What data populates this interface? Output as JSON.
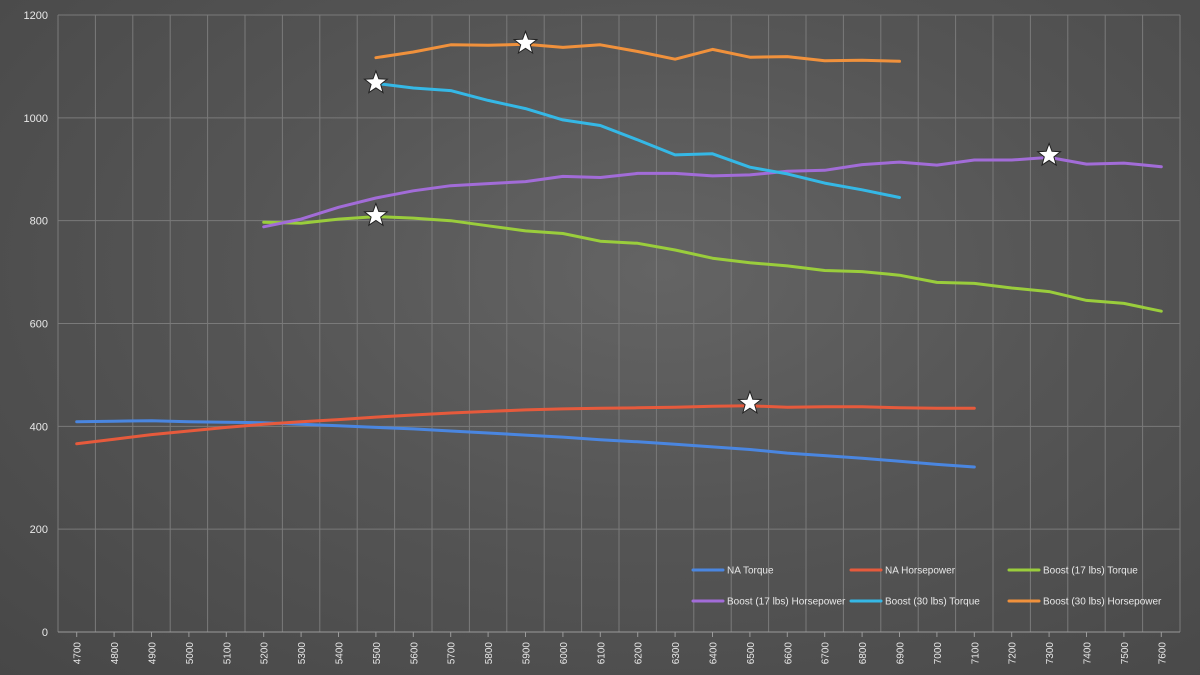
{
  "chart_data": {
    "type": "line",
    "title": "",
    "xlabel": "",
    "ylabel": "",
    "ylim": [
      0,
      1200
    ],
    "yticks": [
      0,
      200,
      400,
      600,
      800,
      1000,
      1200
    ],
    "x": [
      4700,
      4800,
      4900,
      5000,
      5100,
      5200,
      5300,
      5400,
      5500,
      5600,
      5700,
      5800,
      5900,
      6000,
      6100,
      6200,
      6300,
      6400,
      6500,
      6600,
      6700,
      6800,
      6900,
      7000,
      7100,
      7200,
      7300,
      7400,
      7500,
      7600
    ],
    "grid": true,
    "legend": "bottom-right",
    "series": [
      {
        "name": "NA Torque",
        "color": "#4a86e0",
        "points": [
          [
            4700,
            409
          ],
          [
            4800,
            410
          ],
          [
            4900,
            411
          ],
          [
            5000,
            409
          ],
          [
            5100,
            408
          ],
          [
            5200,
            407
          ],
          [
            5300,
            404
          ],
          [
            5400,
            401
          ],
          [
            5500,
            398
          ],
          [
            5600,
            395
          ],
          [
            5700,
            391
          ],
          [
            5800,
            387
          ],
          [
            5900,
            383
          ],
          [
            6000,
            379
          ],
          [
            6100,
            374
          ],
          [
            6200,
            370
          ],
          [
            6300,
            365
          ],
          [
            6400,
            360
          ],
          [
            6500,
            355
          ],
          [
            6600,
            348
          ],
          [
            6700,
            343
          ],
          [
            6800,
            338
          ],
          [
            6900,
            332
          ],
          [
            7000,
            326
          ],
          [
            7100,
            321
          ]
        ]
      },
      {
        "name": "NA Horsepower",
        "color": "#e65a3c",
        "points": [
          [
            4700,
            366
          ],
          [
            4800,
            375
          ],
          [
            4900,
            384
          ],
          [
            5000,
            391
          ],
          [
            5100,
            398
          ],
          [
            5200,
            404
          ],
          [
            5300,
            409
          ],
          [
            5400,
            413
          ],
          [
            5500,
            418
          ],
          [
            5600,
            422
          ],
          [
            5700,
            426
          ],
          [
            5800,
            429
          ],
          [
            5900,
            432
          ],
          [
            6000,
            434
          ],
          [
            6100,
            435
          ],
          [
            6200,
            436
          ],
          [
            6300,
            437
          ],
          [
            6400,
            439
          ],
          [
            6500,
            440
          ],
          [
            6600,
            437
          ],
          [
            6700,
            438
          ],
          [
            6800,
            438
          ],
          [
            6900,
            436
          ],
          [
            7000,
            435
          ],
          [
            7100,
            435
          ]
        ]
      },
      {
        "name": "Boost (17 lbs) Torque",
        "color": "#9acd3c",
        "points": [
          [
            5200,
            797
          ],
          [
            5300,
            795
          ],
          [
            5400,
            803
          ],
          [
            5500,
            808
          ],
          [
            5600,
            805
          ],
          [
            5700,
            800
          ],
          [
            5800,
            790
          ],
          [
            5900,
            780
          ],
          [
            6000,
            775
          ],
          [
            6100,
            760
          ],
          [
            6200,
            756
          ],
          [
            6300,
            743
          ],
          [
            6400,
            727
          ],
          [
            6500,
            718
          ],
          [
            6600,
            712
          ],
          [
            6700,
            703
          ],
          [
            6800,
            701
          ],
          [
            6900,
            694
          ],
          [
            7000,
            680
          ],
          [
            7100,
            678
          ],
          [
            7200,
            669
          ],
          [
            7300,
            662
          ],
          [
            7400,
            645
          ],
          [
            7500,
            639
          ],
          [
            7600,
            624
          ]
        ]
      },
      {
        "name": "Boost (17 lbs) Horsepower",
        "color": "#a26cd8",
        "points": [
          [
            5200,
            788
          ],
          [
            5300,
            803
          ],
          [
            5400,
            826
          ],
          [
            5500,
            844
          ],
          [
            5600,
            858
          ],
          [
            5700,
            868
          ],
          [
            5800,
            872
          ],
          [
            5900,
            876
          ],
          [
            6000,
            886
          ],
          [
            6100,
            884
          ],
          [
            6200,
            892
          ],
          [
            6300,
            892
          ],
          [
            6400,
            887
          ],
          [
            6500,
            889
          ],
          [
            6600,
            896
          ],
          [
            6700,
            898
          ],
          [
            6800,
            909
          ],
          [
            6900,
            914
          ],
          [
            7000,
            908
          ],
          [
            7100,
            918
          ],
          [
            7200,
            918
          ],
          [
            7300,
            923
          ],
          [
            7400,
            910
          ],
          [
            7500,
            912
          ],
          [
            7600,
            905
          ]
        ]
      },
      {
        "name": "Boost (30 lbs) Torque",
        "color": "#35b8e6",
        "points": [
          [
            5500,
            1067
          ],
          [
            5600,
            1058
          ],
          [
            5700,
            1053
          ],
          [
            5800,
            1034
          ],
          [
            5900,
            1018
          ],
          [
            6000,
            996
          ],
          [
            6100,
            985
          ],
          [
            6200,
            957
          ],
          [
            6300,
            928
          ],
          [
            6400,
            930
          ],
          [
            6500,
            904
          ],
          [
            6600,
            891
          ],
          [
            6700,
            873
          ],
          [
            6800,
            860
          ],
          [
            6900,
            845
          ]
        ]
      },
      {
        "name": "Boost (30 lbs) Horsepower",
        "color": "#f0913c",
        "points": [
          [
            5500,
            1117
          ],
          [
            5600,
            1128
          ],
          [
            5700,
            1142
          ],
          [
            5800,
            1141
          ],
          [
            5900,
            1143
          ],
          [
            6000,
            1137
          ],
          [
            6100,
            1142
          ],
          [
            6200,
            1129
          ],
          [
            6300,
            1114
          ],
          [
            6400,
            1133
          ],
          [
            6500,
            1118
          ],
          [
            6600,
            1119
          ],
          [
            6700,
            1111
          ],
          [
            6800,
            1112
          ],
          [
            6900,
            1110
          ]
        ]
      }
    ],
    "annotations": [
      {
        "type": "star",
        "x": 5900,
        "y": 1145
      },
      {
        "type": "star",
        "x": 5500,
        "y": 1068
      },
      {
        "type": "star",
        "x": 7300,
        "y": 927
      },
      {
        "type": "star",
        "x": 5500,
        "y": 810
      },
      {
        "type": "star",
        "x": 6500,
        "y": 445
      }
    ]
  }
}
